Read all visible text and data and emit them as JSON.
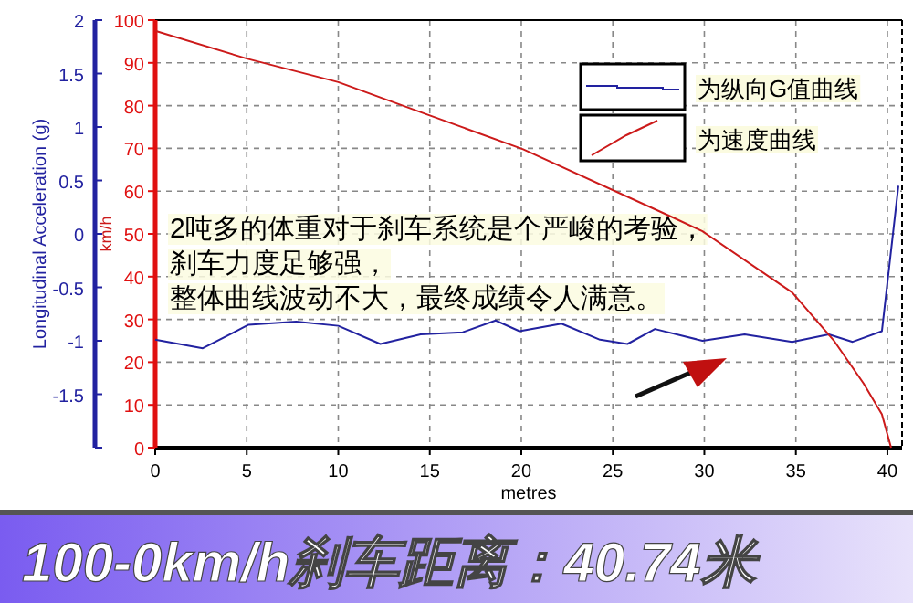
{
  "chart_data": {
    "type": "line",
    "title": "100-0km/h刹车距离：40.74米",
    "xlabel": "metres",
    "ylabel": "Longitudinal Acceleration (g)",
    "y2label": "km/h",
    "xlim": [
      0,
      40.8
    ],
    "xticks": [
      0,
      5,
      10,
      15,
      20,
      25,
      30,
      35,
      40
    ],
    "ylim": [
      -2,
      2
    ],
    "yticks": [
      {
        "value": -2,
        "label": null
      },
      -1.5,
      -1,
      -0.5,
      0,
      0.5,
      1,
      1.5,
      2
    ],
    "y2lim": [
      0,
      100
    ],
    "y2ticks": [
      0,
      10,
      20,
      30,
      40,
      50,
      60,
      70,
      80,
      90,
      100
    ],
    "grid": true,
    "legend": "top right",
    "series": [
      {
        "name": "为纵向G值曲线",
        "color": "#2222a0",
        "x": [
          0,
          2.6,
          5.1,
          7.7,
          10.0,
          12.3,
          14.5,
          16.8,
          18.6,
          19.9,
          22.2,
          24.3,
          25.8,
          27.3,
          29.9,
          32.2,
          34.8,
          36.8,
          38.1,
          39.7,
          40.6
        ],
        "values": [
          -0.99,
          -1.07,
          -0.85,
          -0.82,
          -0.86,
          -1.03,
          -0.94,
          -0.92,
          -0.81,
          -0.91,
          -0.84,
          -0.99,
          -1.03,
          -0.89,
          -1.0,
          -0.94,
          -1.01,
          -0.94,
          -1.01,
          -0.91,
          0.45
        ]
      },
      {
        "name": "为速度曲线",
        "color": "#cc1a1a",
        "axis": "y2",
        "x": [
          0,
          5,
          10,
          15,
          20.1,
          28.2,
          29.9,
          34.8,
          37.1,
          38.7,
          39.7,
          40.2
        ],
        "values": [
          97.5,
          91,
          85.5,
          77.7,
          69.8,
          54,
          50.6,
          36.3,
          24.9,
          15,
          7.8,
          0
        ]
      }
    ],
    "annotations": [
      "2吨多的体重对于刹车系统是个严峻的考验，",
      "刹车力度足够强，",
      "整体曲线波动不大，最终成绩令人满意。"
    ]
  }
}
